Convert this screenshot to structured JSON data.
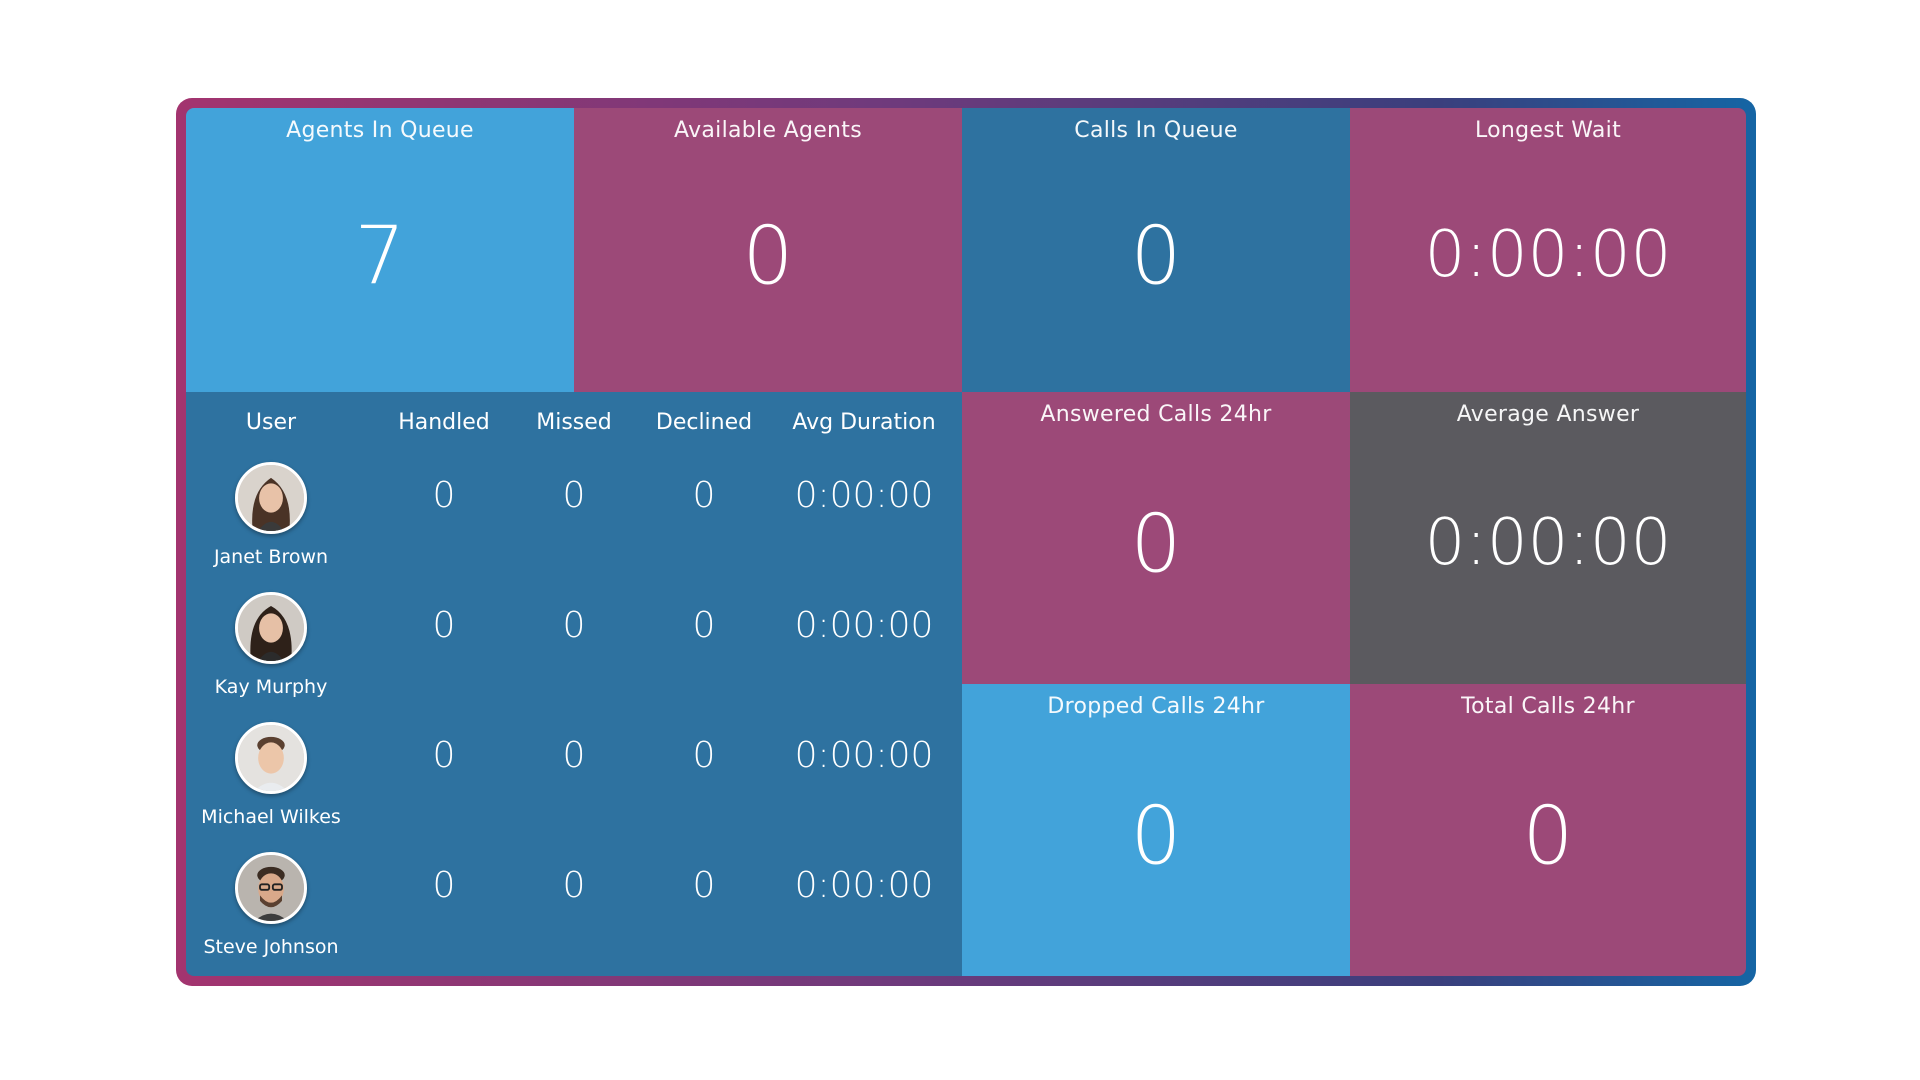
{
  "stats": {
    "agents_in_queue": {
      "title": "Agents In Queue",
      "value": "7"
    },
    "available_agents": {
      "title": "Available Agents",
      "value": "0"
    },
    "calls_in_queue": {
      "title": "Calls In Queue",
      "value": "0"
    },
    "longest_wait": {
      "title": "Longest Wait",
      "value": "0:00:00"
    },
    "answered_calls": {
      "title": "Answered Calls 24hr",
      "value": "0"
    },
    "average_answer": {
      "title": "Average Answer",
      "value": "0:00:00"
    },
    "dropped_calls": {
      "title": "Dropped Calls 24hr",
      "value": "0"
    },
    "total_calls": {
      "title": "Total Calls 24hr",
      "value": "0"
    }
  },
  "users_table": {
    "headers": [
      "User",
      "Handled",
      "Missed",
      "Declined",
      "Avg Duration"
    ],
    "rows": [
      {
        "name": "Janet Brown",
        "handled": "0",
        "missed": "0",
        "declined": "0",
        "avg_duration": "0:00:00",
        "avatar": "avatar-janet-brown"
      },
      {
        "name": "Kay Murphy",
        "handled": "0",
        "missed": "0",
        "declined": "0",
        "avg_duration": "0:00:00",
        "avatar": "avatar-kay-murphy"
      },
      {
        "name": "Michael Wilkes",
        "handled": "0",
        "missed": "0",
        "declined": "0",
        "avg_duration": "0:00:00",
        "avatar": "avatar-michael-wilkes"
      },
      {
        "name": "Steve Johnson",
        "handled": "0",
        "missed": "0",
        "declined": "0",
        "avg_duration": "0:00:00",
        "avatar": "avatar-steve-johnson"
      }
    ]
  },
  "colors": {
    "light_blue": "#42a3da",
    "magenta": "#9c4978",
    "dark_blue": "#2e72a0",
    "gray": "#5b5a5f"
  }
}
